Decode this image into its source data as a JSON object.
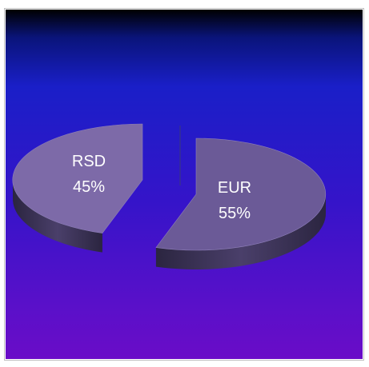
{
  "chart_data": {
    "type": "pie",
    "style": "3d-exploded",
    "title": "",
    "slices": [
      {
        "label": "RSD",
        "value": 45,
        "value_label": "45%",
        "color": "#7d6aa8"
      },
      {
        "label": "EUR",
        "value": 55,
        "value_label": "55%",
        "color": "#6b5a97"
      }
    ],
    "legend": "none",
    "background": {
      "top": "#000000",
      "middle": "#1a1fc8",
      "bottom": "#6a0cc8"
    }
  }
}
